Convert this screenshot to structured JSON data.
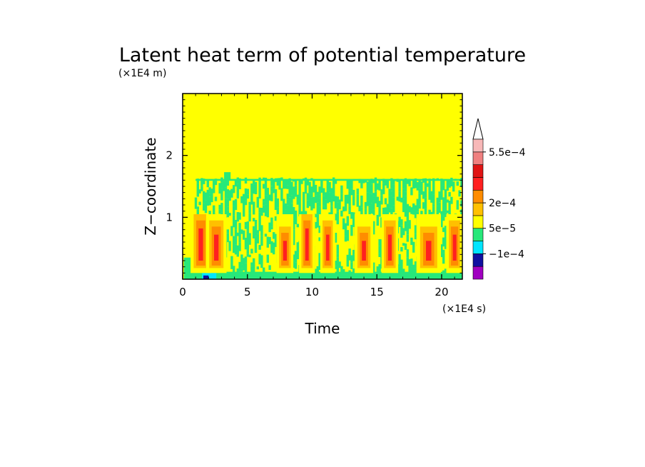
{
  "chart_data": {
    "type": "heatmap",
    "title": "Latent heat term of potential temperature",
    "xlabel": "Time",
    "ylabel": "Z−coordinate",
    "x_unit": "(×1E4 s)",
    "y_unit": "(×1E4 m)",
    "xlim": [
      0,
      21.6
    ],
    "ylim": [
      0,
      3.0
    ],
    "x_ticks": [
      0,
      5,
      10,
      15,
      20
    ],
    "x_tick_labels": [
      "0",
      "5",
      "10",
      "15",
      "20"
    ],
    "y_ticks": [
      1,
      2
    ],
    "y_tick_labels": [
      "1",
      "2"
    ],
    "grid": false,
    "background_level_color": "#ffff00",
    "colorbar": {
      "levels": [
        "#a000c0",
        "#1010a0",
        "#00e5ff",
        "#27e87a",
        "#ffff00",
        "#ffc000",
        "#ff8c00",
        "#ff2020",
        "#e01414",
        "#f08080",
        "#f8b8b8"
      ],
      "extend_color": "#ffffff",
      "labels": [
        {
          "text": "−1e−4",
          "value": -0.0001
        },
        {
          "text": "5e−5",
          "value": 5e-05
        },
        {
          "text": "2e−4",
          "value": 0.0002
        },
        {
          "text": "5.5e−4",
          "value": 0.00055
        }
      ]
    },
    "cloud_layer": {
      "top_z": 1.62,
      "green_cells_top_z": 1.6
    },
    "convective_events_time": [
      1.4,
      2.6,
      7.9,
      9.6,
      11.2,
      14.0,
      16.0,
      19.0,
      21.0
    ],
    "convective_events_peak_z": [
      0.7,
      0.6,
      0.5,
      0.7,
      0.6,
      0.5,
      0.6,
      0.5,
      0.6
    ]
  }
}
